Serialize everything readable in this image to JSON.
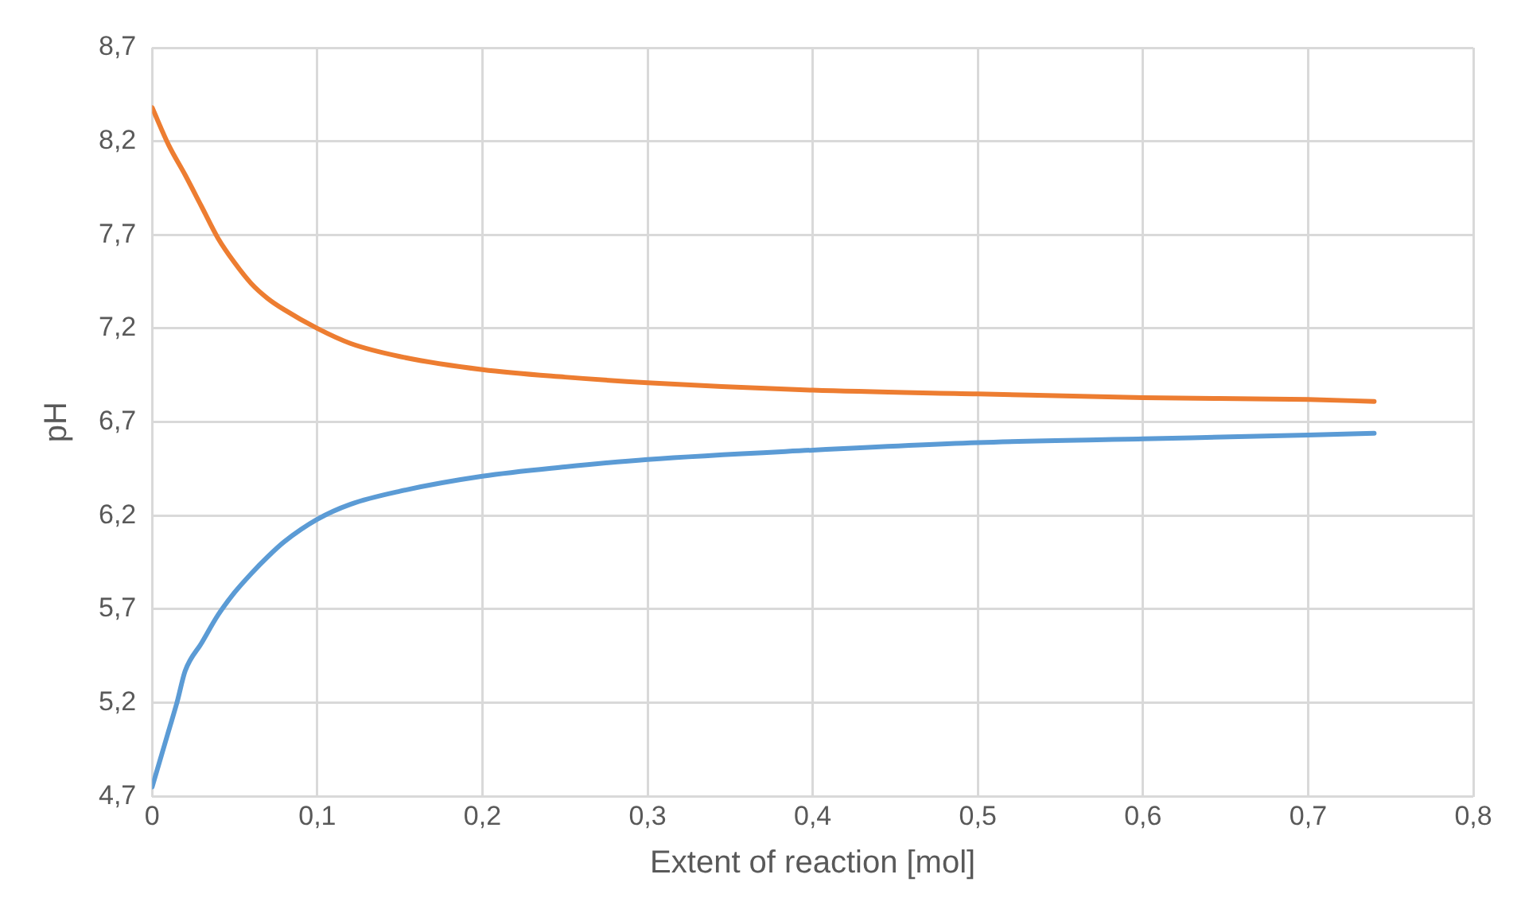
{
  "chart_data": {
    "type": "line",
    "xlabel": "Extent of reaction [mol]",
    "ylabel": "pH",
    "xlim": [
      0,
      0.8
    ],
    "ylim": [
      4.7,
      8.7
    ],
    "xticks": [
      0,
      {
        "value": 0.1,
        "label": "0,1"
      },
      {
        "value": 0.2,
        "label": "0,2"
      },
      {
        "value": 0.3,
        "label": "0,3"
      },
      {
        "value": 0.4,
        "label": "0,4"
      },
      {
        "value": 0.5,
        "label": "0,5"
      },
      {
        "value": 0.6,
        "label": "0,6"
      },
      {
        "value": 0.7,
        "label": "0,7"
      },
      {
        "value": 0.8,
        "label": "0,8"
      }
    ],
    "yticks": [
      {
        "value": 4.7,
        "label": "4,7"
      },
      {
        "value": 5.2,
        "label": "5,2"
      },
      {
        "value": 5.7,
        "label": "5,7"
      },
      {
        "value": 6.2,
        "label": "6,2"
      },
      {
        "value": 6.7,
        "label": "6,7"
      },
      {
        "value": 7.2,
        "label": "7,2"
      },
      {
        "value": 7.7,
        "label": "7,7"
      },
      {
        "value": 8.2,
        "label": "8,2"
      },
      {
        "value": 8.7,
        "label": "8,7"
      }
    ],
    "grid": true,
    "marker": "none",
    "line_style": "solid",
    "series": [
      {
        "color": "#ed7d31",
        "x": [
          0,
          0.01,
          0.02,
          0.03,
          0.04,
          0.05,
          0.06,
          0.07,
          0.08,
          0.1,
          0.12,
          0.15,
          0.2,
          0.25,
          0.3,
          0.4,
          0.5,
          0.6,
          0.7,
          0.74
        ],
        "values": [
          8.38,
          8.18,
          8.02,
          7.85,
          7.68,
          7.55,
          7.44,
          7.36,
          7.3,
          7.2,
          7.12,
          7.05,
          6.98,
          6.94,
          6.91,
          6.87,
          6.85,
          6.83,
          6.82,
          6.81
        ]
      },
      {
        "color": "#5b9bd5",
        "x": [
          0,
          0.005,
          0.01,
          0.015,
          0.02,
          0.03,
          0.04,
          0.05,
          0.06,
          0.07,
          0.08,
          0.1,
          0.12,
          0.15,
          0.2,
          0.25,
          0.3,
          0.4,
          0.5,
          0.6,
          0.7,
          0.74
        ],
        "values": [
          4.75,
          4.9,
          5.05,
          5.2,
          5.37,
          5.52,
          5.67,
          5.79,
          5.89,
          5.98,
          6.06,
          6.18,
          6.26,
          6.33,
          6.41,
          6.46,
          6.5,
          6.55,
          6.59,
          6.61,
          6.63,
          6.64
        ]
      }
    ]
  }
}
